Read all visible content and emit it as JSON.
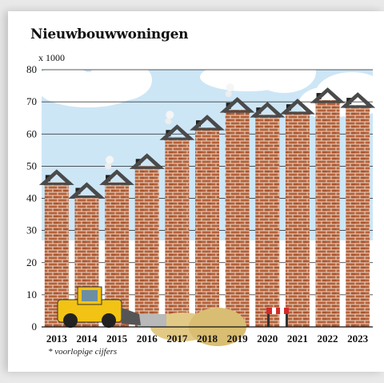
{
  "chart_data": {
    "type": "bar",
    "title": "Nieuwbouwwoningen",
    "unit_label": "x 1000",
    "footnote": "* voorlopige cijfers",
    "categories": [
      "2013",
      "2014",
      "2015",
      "2016",
      "2017",
      "2018",
      "2019",
      "2020",
      "2021",
      "2022",
      "2023"
    ],
    "values": [
      48.5,
      44.5,
      48.5,
      53.5,
      62.5,
      65.5,
      71.0,
      69.5,
      70.5,
      74.0,
      72.5
    ],
    "ylim": [
      0,
      80
    ],
    "yticks": [
      0,
      10,
      20,
      30,
      40,
      50,
      60,
      70,
      80
    ],
    "grid": true,
    "colors": {
      "brick": "#b5613a",
      "mortar": "#ead9c8",
      "roof": "#4a4a4a",
      "sky": "#cde6f6"
    }
  }
}
